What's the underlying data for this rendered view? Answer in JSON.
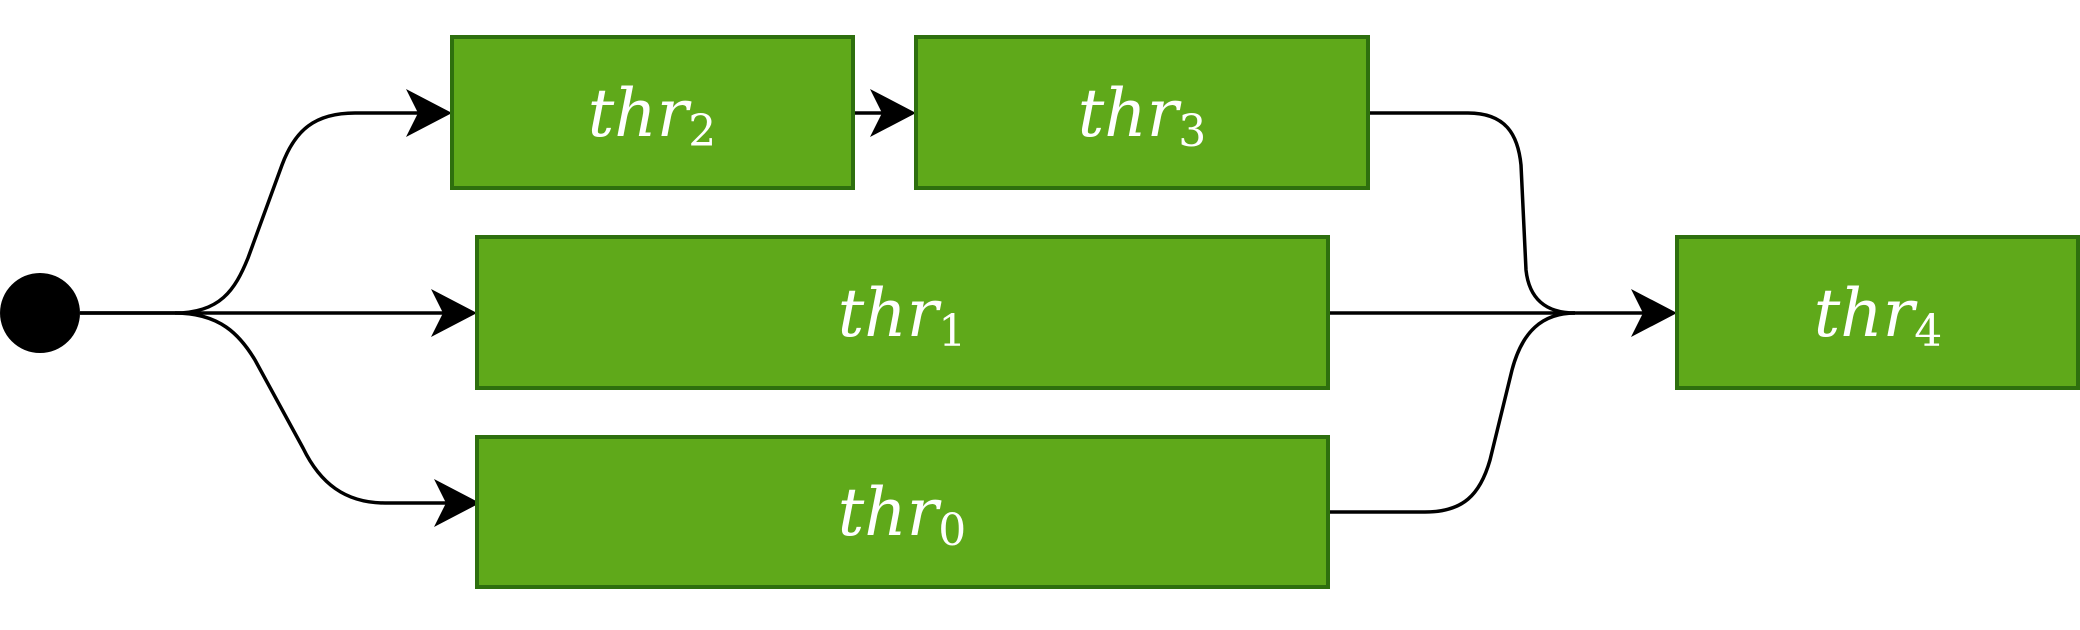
{
  "diagram": {
    "nodes": [
      {
        "id": "thr2",
        "base": "thr",
        "subscript": "2"
      },
      {
        "id": "thr3",
        "base": "thr",
        "subscript": "3"
      },
      {
        "id": "thr1",
        "base": "thr",
        "subscript": "1"
      },
      {
        "id": "thr0",
        "base": "thr",
        "subscript": "0"
      },
      {
        "id": "thr4",
        "base": "thr",
        "subscript": "4"
      }
    ],
    "edges": [
      {
        "from": "start",
        "to": "thr2"
      },
      {
        "from": "start",
        "to": "thr1"
      },
      {
        "from": "start",
        "to": "thr0"
      },
      {
        "from": "thr2",
        "to": "thr3"
      },
      {
        "from": "thr3",
        "to": "thr4"
      },
      {
        "from": "thr1",
        "to": "thr4"
      },
      {
        "from": "thr0",
        "to": "thr4"
      }
    ],
    "colors": {
      "node_fill": "#5fa91a",
      "node_border": "#2e6f0e",
      "edge": "#000000",
      "start_node": "#000000",
      "label": "#ffffff"
    }
  }
}
